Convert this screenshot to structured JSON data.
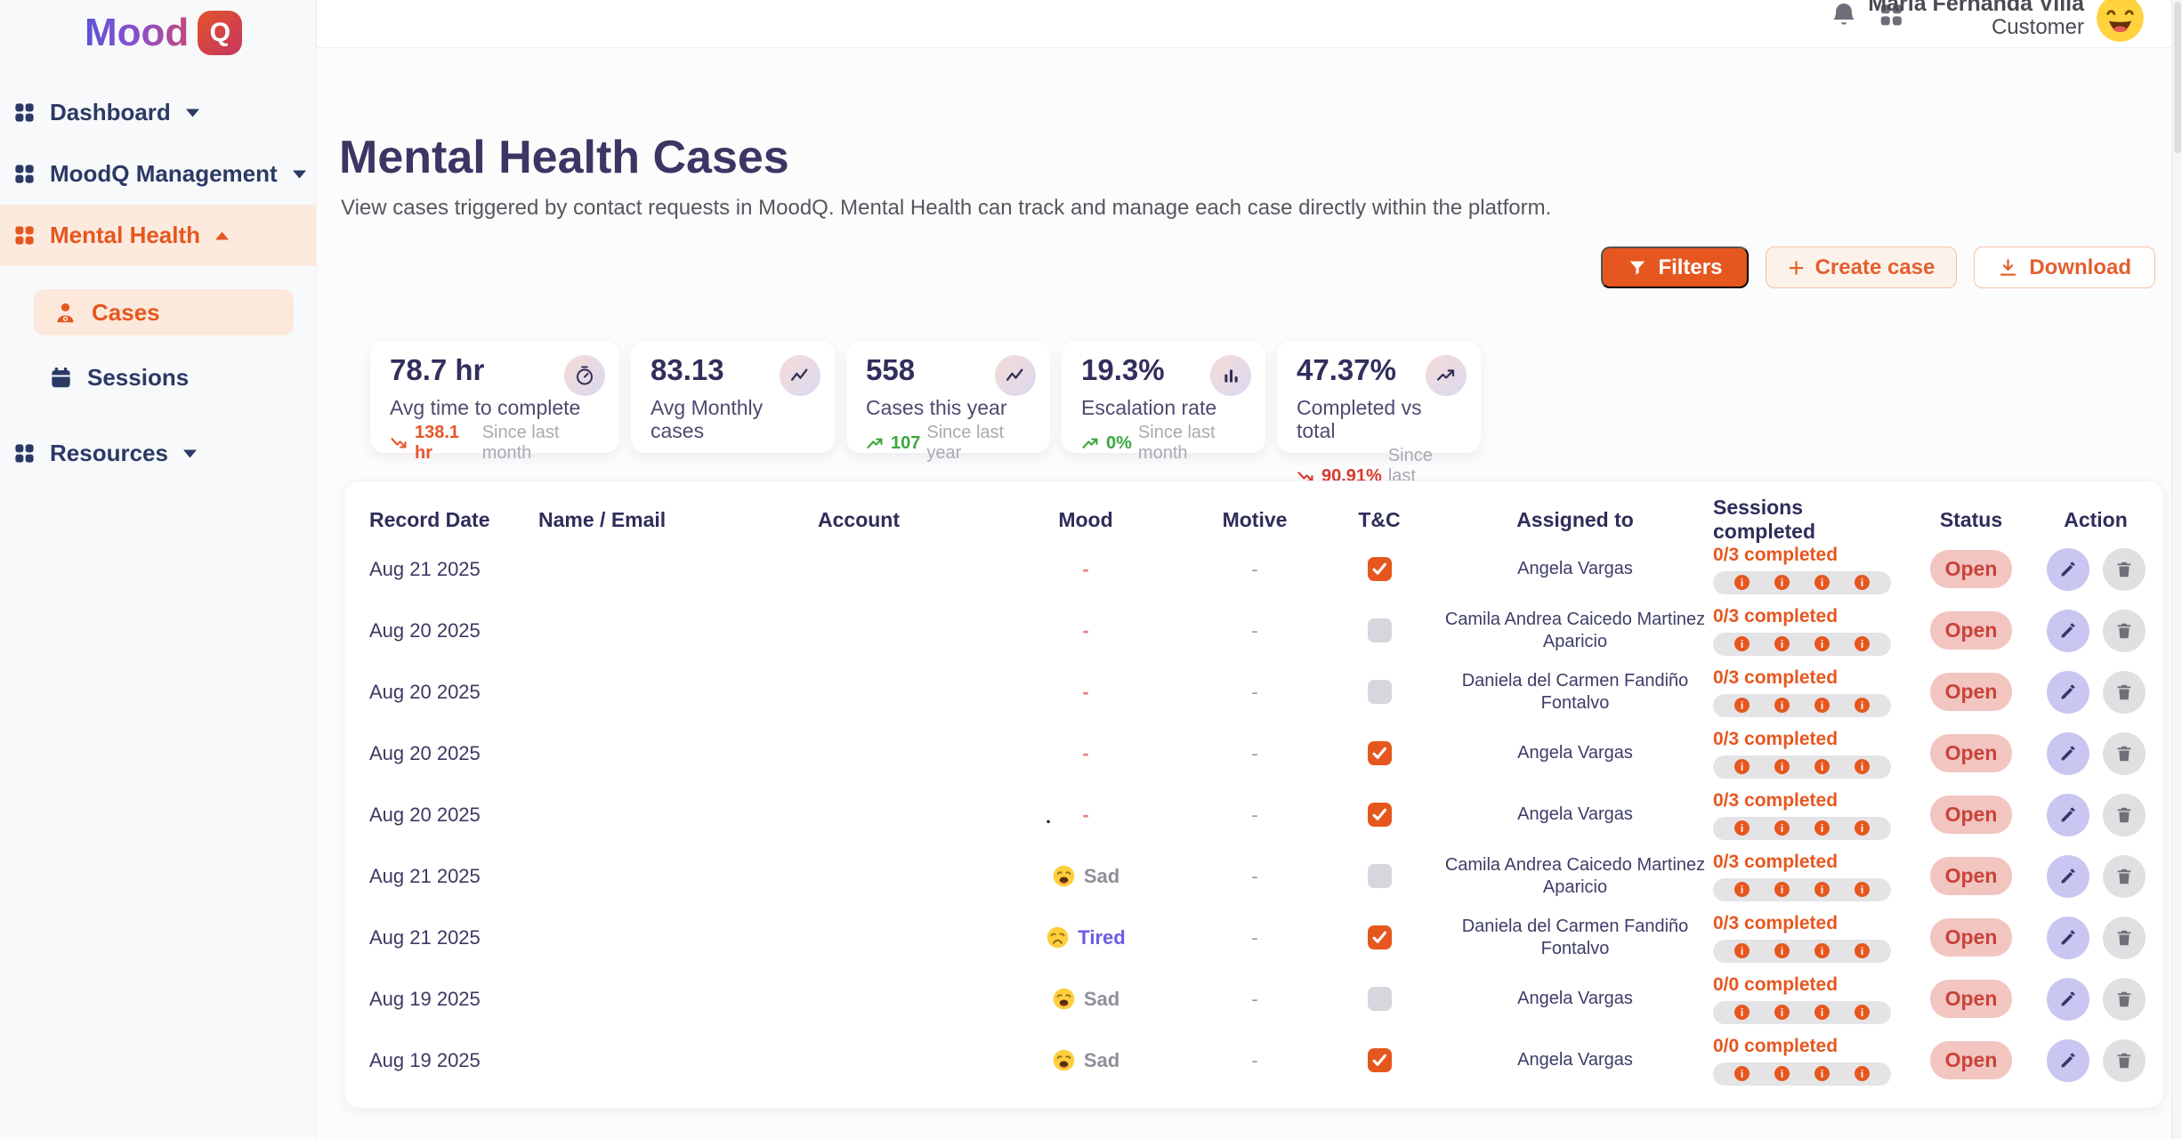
{
  "brand": {
    "name": "Mood",
    "badge": "Q"
  },
  "sidebar": {
    "items": [
      {
        "label": "Dashboard",
        "chevron": "down",
        "active": false
      },
      {
        "label": "MoodQ Management",
        "chevron": "down",
        "active": false
      },
      {
        "label": "Mental Health",
        "chevron": "up",
        "active": true,
        "children": [
          {
            "label": "Cases",
            "active": true
          },
          {
            "label": "Sessions",
            "active": false
          }
        ]
      },
      {
        "label": "Resources",
        "chevron": "down",
        "active": false
      }
    ]
  },
  "header": {
    "user_name": "Maria Fernanda Villa",
    "user_role": "Customer"
  },
  "page": {
    "title": "Mental Health Cases",
    "subtitle": "View cases triggered by contact requests in MoodQ. Mental Health can track and manage each case directly within the platform."
  },
  "toolbar": {
    "filters_label": "Filters",
    "create_label": "Create case",
    "create_plus": "+",
    "download_label": "Download"
  },
  "stats": [
    {
      "value": "78.7 hr",
      "label": "Avg time to complete",
      "icon": "timer-icon",
      "trend": {
        "dir": "down",
        "value": "138.1 hr",
        "caption": "Since last month",
        "color": "#E8552A"
      }
    },
    {
      "value": "83.13",
      "label": "Avg Monthly cases",
      "icon": "activity-icon",
      "trend": null
    },
    {
      "value": "558",
      "label": "Cases this year",
      "icon": "activity-icon",
      "trend": {
        "dir": "up",
        "value": "107",
        "caption": "Since last year",
        "color": "#3AA83E"
      }
    },
    {
      "value": "19.3%",
      "label": "Escalation rate",
      "icon": "bar-chart-icon",
      "trend": {
        "dir": "up",
        "value": "0%",
        "caption": "Since last month",
        "color": "#3AA83E"
      }
    },
    {
      "value": "47.37%",
      "label": "Completed vs total",
      "icon": "trending-up-icon",
      "trend": {
        "dir": "down",
        "value": "90.91%",
        "caption": "Since last month",
        "color": "#D93A2E"
      }
    }
  ],
  "table": {
    "columns": [
      "Record Date",
      "Name / Email",
      "Account",
      "Mood",
      "Motive",
      "T&C",
      "Assigned to",
      "Sessions completed",
      "Status",
      "Action"
    ],
    "session_dot_glyph": "i",
    "session_dot_count": 4,
    "rows": [
      {
        "record_date": "Aug 21 2025",
        "name_email": "",
        "account": "",
        "mood": {
          "kind": "dash",
          "value": "-"
        },
        "motive": "-",
        "tc_checked": true,
        "assigned_to": "Angela Vargas",
        "sessions_label": "0/3 completed",
        "status": "Open"
      },
      {
        "record_date": "Aug 20 2025",
        "name_email": "",
        "account": "",
        "mood": {
          "kind": "dash",
          "value": "-"
        },
        "motive": "-",
        "tc_checked": false,
        "assigned_to": "Camila Andrea Caicedo Martinez Aparicio",
        "sessions_label": "0/3 completed",
        "status": "Open"
      },
      {
        "record_date": "Aug 20 2025",
        "name_email": "",
        "account": "",
        "mood": {
          "kind": "dash",
          "value": "-"
        },
        "motive": "-",
        "tc_checked": false,
        "assigned_to": "Daniela del Carmen Fandiño Fontalvo",
        "sessions_label": "0/3 completed",
        "status": "Open"
      },
      {
        "record_date": "Aug 20 2025",
        "name_email": "",
        "account": "",
        "mood": {
          "kind": "dash",
          "value": "-"
        },
        "motive": "-",
        "tc_checked": true,
        "assigned_to": "Angela Vargas",
        "sessions_label": "0/3 completed",
        "status": "Open"
      },
      {
        "record_date": "Aug 20 2025",
        "name_email": "",
        "account": "",
        "mood": {
          "kind": "dash",
          "value": "-"
        },
        "motive": "-",
        "tc_checked": true,
        "assigned_to": "Angela Vargas",
        "sessions_label": "0/3 completed",
        "status": "Open",
        "stray": "."
      },
      {
        "record_date": "Aug 21 2025",
        "name_email": "",
        "account": "",
        "mood": {
          "kind": "emoji",
          "icon": "sad-emoji-icon",
          "label": "Sad",
          "color": "#8F8F99"
        },
        "motive": "-",
        "tc_checked": false,
        "assigned_to": "Camila Andrea Caicedo Martinez Aparicio",
        "sessions_label": "0/3 completed",
        "status": "Open"
      },
      {
        "record_date": "Aug 21 2025",
        "name_email": "",
        "account": "",
        "mood": {
          "kind": "emoji",
          "icon": "tired-emoji-icon",
          "label": "Tired",
          "color": "#6A5BE2"
        },
        "motive": "-",
        "tc_checked": true,
        "assigned_to": "Daniela del Carmen Fandiño Fontalvo",
        "sessions_label": "0/3 completed",
        "status": "Open"
      },
      {
        "record_date": "Aug 19 2025",
        "name_email": "",
        "account": "",
        "mood": {
          "kind": "emoji",
          "icon": "sad-emoji-icon",
          "label": "Sad",
          "color": "#8F8F99"
        },
        "motive": "-",
        "tc_checked": false,
        "assigned_to": "Angela Vargas",
        "sessions_label": "0/0 completed",
        "status": "Open"
      },
      {
        "record_date": "Aug 19 2025",
        "name_email": "",
        "account": "",
        "mood": {
          "kind": "emoji",
          "icon": "sad-emoji-icon",
          "label": "Sad",
          "color": "#8F8F99"
        },
        "motive": "-",
        "tc_checked": true,
        "assigned_to": "Angela Vargas",
        "sessions_label": "0/0 completed",
        "status": "Open"
      }
    ]
  },
  "colors": {
    "accent_orange": "#E6571F",
    "status_open_bg": "#F2C5C1",
    "status_open_text": "#C9423A",
    "trend_green": "#3AA83E",
    "trend_red": "#D93A2E",
    "sidebar_active_bg": "#FCEADF",
    "navy_text": "#2B3A64"
  }
}
